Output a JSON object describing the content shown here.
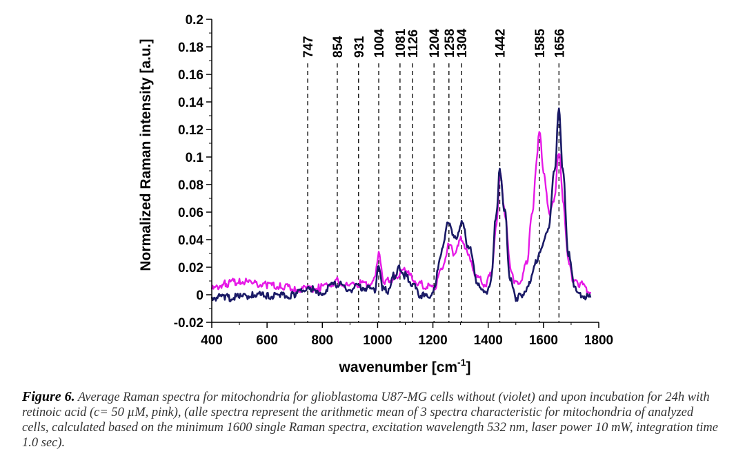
{
  "chart_data": {
    "type": "line",
    "xlabel": "wavenumber [cm",
    "xlabel_sup": "-1",
    "xlabel_end": "]",
    "ylabel": "Normalized Raman intensity [a.u.]",
    "xlim": [
      400,
      1800
    ],
    "ylim": [
      -0.02,
      0.2
    ],
    "x_ticks": [
      "400",
      "600",
      "800",
      "1000",
      "1200",
      "1400",
      "1600",
      "1800"
    ],
    "y_ticks": [
      "-0.02",
      "0",
      "0.02",
      "0.04",
      "0.06",
      "0.08",
      "0.1",
      "0.12",
      "0.14",
      "0.16",
      "0.18",
      "0.2"
    ],
    "peak_labels": [
      "747",
      "854",
      "931",
      "1004",
      "1081",
      "1126",
      "1204",
      "1258",
      "1304",
      "1442",
      "1585",
      "1656"
    ],
    "series": [
      {
        "color": "#e619e6",
        "x": [
          400,
          450,
          500,
          550,
          600,
          650,
          700,
          747,
          790,
          830,
          854,
          900,
          931,
          970,
          990,
          1004,
          1020,
          1040,
          1060,
          1081,
          1100,
          1126,
          1150,
          1180,
          1204,
          1230,
          1258,
          1280,
          1304,
          1330,
          1360,
          1390,
          1410,
          1430,
          1442,
          1460,
          1480,
          1500,
          1520,
          1540,
          1560,
          1575,
          1585,
          1600,
          1620,
          1640,
          1656,
          1670,
          1690,
          1710,
          1730,
          1770
        ],
        "y": [
          0.004,
          0.008,
          0.01,
          0.008,
          0.007,
          0.006,
          0.004,
          0.004,
          0.005,
          0.008,
          0.01,
          0.006,
          0.008,
          0.008,
          0.012,
          0.03,
          0.01,
          0.01,
          0.012,
          0.015,
          0.018,
          0.012,
          0.008,
          0.006,
          0.005,
          0.018,
          0.035,
          0.03,
          0.04,
          0.028,
          0.012,
          0.008,
          0.015,
          0.05,
          0.088,
          0.06,
          0.02,
          0.008,
          0.01,
          0.025,
          0.06,
          0.095,
          0.118,
          0.09,
          0.06,
          0.07,
          0.105,
          0.07,
          0.025,
          0.01,
          0.008,
          0.002
        ]
      },
      {
        "color": "#1a1a66",
        "x": [
          400,
          450,
          500,
          550,
          600,
          650,
          700,
          747,
          790,
          830,
          854,
          900,
          931,
          970,
          990,
          1004,
          1020,
          1040,
          1060,
          1081,
          1100,
          1126,
          1150,
          1180,
          1204,
          1230,
          1258,
          1280,
          1304,
          1330,
          1360,
          1390,
          1410,
          1430,
          1442,
          1460,
          1480,
          1500,
          1520,
          1540,
          1560,
          1575,
          1585,
          1600,
          1620,
          1640,
          1656,
          1670,
          1690,
          1710,
          1730,
          1770
        ],
        "y": [
          -0.002,
          -0.002,
          -0.002,
          0.0,
          -0.001,
          -0.001,
          0.0,
          0.006,
          0.0,
          0.006,
          0.008,
          0.004,
          0.006,
          0.004,
          0.004,
          0.022,
          0.004,
          0.002,
          0.014,
          0.02,
          0.014,
          0.008,
          0.0,
          -0.002,
          0.004,
          0.03,
          0.053,
          0.04,
          0.052,
          0.035,
          0.01,
          0.0,
          0.01,
          0.06,
          0.092,
          0.06,
          0.01,
          -0.002,
          0.0,
          0.004,
          0.015,
          0.025,
          0.032,
          0.038,
          0.05,
          0.09,
          0.135,
          0.09,
          0.03,
          0.008,
          0.0,
          -0.002
        ]
      }
    ]
  },
  "caption": {
    "label": "Figure 6.",
    "text": "Average Raman spectra for mitochondria for glioblastoma U87-MG cells without (violet) and upon incubation for 24h with retinoic acid (c= 50 µM, pink), (alle spectra represent the arithmetic mean of 3 spectra characteristic for mitochondria of analyzed cells, calculated based on the minimum 1600 single Raman spectra, excitation wavelength 532 nm, laser power 10 mW, integration time 1.0 sec)."
  }
}
